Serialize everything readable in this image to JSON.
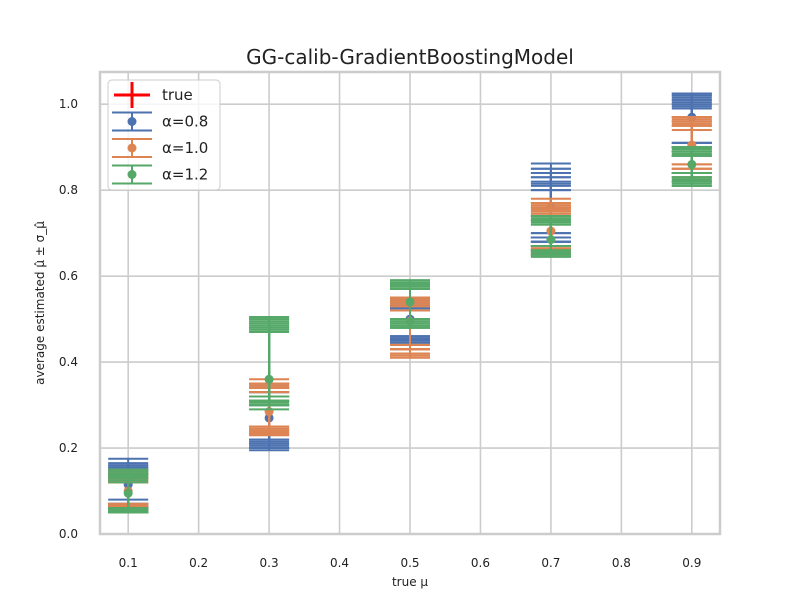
{
  "chart_data": {
    "type": "scatter",
    "title": "GG-calib-GradientBoostingModel",
    "xlabel": "true μ",
    "ylabel": "average estimated μ̂ ± σ_μ̂",
    "xlim": [
      0.06,
      0.94
    ],
    "ylim": [
      0.0,
      1.075
    ],
    "xticks": [
      0.1,
      0.2,
      0.3,
      0.4,
      0.5,
      0.6,
      0.7,
      0.8,
      0.9
    ],
    "yticks": [
      0.0,
      0.2,
      0.4,
      0.6,
      0.8,
      1.0
    ],
    "xtick_labels": [
      "0.1",
      "0.2",
      "0.3",
      "0.4",
      "0.5",
      "0.6",
      "0.7",
      "0.8",
      "0.9"
    ],
    "ytick_labels": [
      "0.0",
      "0.2",
      "0.4",
      "0.6",
      "0.8",
      "1.0"
    ],
    "grid": true,
    "legend_position": "top-left",
    "x": [
      0.1,
      0.3,
      0.5,
      0.7,
      0.9
    ],
    "series": [
      {
        "name": "true",
        "kind": "true",
        "color": "#ff0000",
        "y": [
          0.1,
          0.3,
          0.5,
          0.7,
          0.9
        ]
      },
      {
        "name": "α=0.8",
        "kind": "errorbar",
        "color": "#4c72b0",
        "means": [
          0.115,
          0.27,
          0.5,
          0.76,
          0.97
        ],
        "runs": [
          [
            [
              0.05,
              0.155
            ],
            [
              0.06,
              0.175
            ],
            [
              0.07,
              0.16
            ],
            [
              0.06,
              0.15
            ],
            [
              0.07,
              0.14
            ],
            [
              0.08,
              0.15
            ],
            [
              0.05,
              0.165
            ],
            [
              0.065,
              0.15
            ],
            [
              0.06,
              0.145
            ],
            [
              0.07,
              0.155
            ],
            [
              0.06,
              0.16
            ],
            [
              0.065,
              0.14
            ]
          ],
          [
            [
              0.195,
              0.35
            ],
            [
              0.2,
              0.33
            ],
            [
              0.21,
              0.34
            ],
            [
              0.2,
              0.31
            ],
            [
              0.22,
              0.33
            ],
            [
              0.2,
              0.35
            ],
            [
              0.205,
              0.32
            ],
            [
              0.21,
              0.3
            ],
            [
              0.2,
              0.33
            ],
            [
              0.215,
              0.34
            ],
            [
              0.2,
              0.3
            ],
            [
              0.22,
              0.32
            ]
          ],
          [
            [
              0.44,
              0.545
            ],
            [
              0.45,
              0.53
            ],
            [
              0.46,
              0.55
            ],
            [
              0.45,
              0.52
            ],
            [
              0.46,
              0.54
            ],
            [
              0.44,
              0.53
            ],
            [
              0.45,
              0.55
            ],
            [
              0.46,
              0.52
            ],
            [
              0.45,
              0.54
            ],
            [
              0.44,
              0.52
            ],
            [
              0.455,
              0.535
            ],
            [
              0.445,
              0.525
            ]
          ],
          [
            [
              0.67,
              0.85
            ],
            [
              0.68,
              0.862
            ],
            [
              0.69,
              0.84
            ],
            [
              0.68,
              0.815
            ],
            [
              0.7,
              0.83
            ],
            [
              0.69,
              0.85
            ],
            [
              0.67,
              0.8
            ],
            [
              0.68,
              0.84
            ],
            [
              0.69,
              0.81
            ],
            [
              0.7,
              0.82
            ],
            [
              0.68,
              0.83
            ],
            [
              0.69,
              0.8
            ]
          ],
          [
            [
              0.89,
              1.025
            ],
            [
              0.9,
              1.015
            ],
            [
              0.91,
              1.02
            ],
            [
              0.89,
              1.0
            ],
            [
              0.9,
              1.01
            ],
            [
              0.91,
              1.025
            ],
            [
              0.88,
              0.99
            ],
            [
              0.9,
              1.02
            ],
            [
              0.89,
              1.0
            ],
            [
              0.91,
              1.01
            ],
            [
              0.9,
              0.995
            ],
            [
              0.89,
              1.005
            ]
          ]
        ]
      },
      {
        "name": "α=1.0",
        "kind": "errorbar",
        "color": "#dd8452",
        "means": [
          0.1,
          0.285,
          0.495,
          0.705,
          0.905
        ],
        "runs": [
          [
            [
              0.055,
              0.14
            ],
            [
              0.06,
              0.13
            ],
            [
              0.065,
              0.145
            ],
            [
              0.06,
              0.12
            ],
            [
              0.07,
              0.135
            ],
            [
              0.055,
              0.125
            ],
            [
              0.06,
              0.14
            ],
            [
              0.065,
              0.13
            ],
            [
              0.06,
              0.12
            ],
            [
              0.07,
              0.14
            ],
            [
              0.06,
              0.135
            ],
            [
              0.065,
              0.125
            ]
          ],
          [
            [
              0.23,
              0.35
            ],
            [
              0.24,
              0.34
            ],
            [
              0.235,
              0.33
            ],
            [
              0.25,
              0.35
            ],
            [
              0.23,
              0.32
            ],
            [
              0.245,
              0.34
            ],
            [
              0.24,
              0.31
            ],
            [
              0.235,
              0.345
            ],
            [
              0.25,
              0.33
            ],
            [
              0.24,
              0.36
            ],
            [
              0.23,
              0.34
            ],
            [
              0.245,
              0.35
            ]
          ],
          [
            [
              0.41,
              0.55
            ],
            [
              0.42,
              0.54
            ],
            [
              0.43,
              0.545
            ],
            [
              0.42,
              0.53
            ],
            [
              0.44,
              0.54
            ],
            [
              0.43,
              0.55
            ],
            [
              0.415,
              0.52
            ],
            [
              0.42,
              0.54
            ],
            [
              0.43,
              0.53
            ],
            [
              0.44,
              0.545
            ],
            [
              0.42,
              0.55
            ],
            [
              0.43,
              0.535
            ]
          ],
          [
            [
              0.65,
              0.77
            ],
            [
              0.66,
              0.76
            ],
            [
              0.665,
              0.75
            ],
            [
              0.65,
              0.78
            ],
            [
              0.67,
              0.76
            ],
            [
              0.66,
              0.77
            ],
            [
              0.65,
              0.75
            ],
            [
              0.665,
              0.765
            ],
            [
              0.66,
              0.755
            ],
            [
              0.67,
              0.77
            ],
            [
              0.655,
              0.76
            ],
            [
              0.66,
              0.745
            ]
          ],
          [
            [
              0.83,
              0.97
            ],
            [
              0.84,
              0.96
            ],
            [
              0.85,
              0.95
            ],
            [
              0.84,
              0.97
            ],
            [
              0.86,
              0.96
            ],
            [
              0.84,
              0.95
            ],
            [
              0.83,
              0.96
            ],
            [
              0.85,
              0.97
            ],
            [
              0.84,
              0.94
            ],
            [
              0.86,
              0.95
            ],
            [
              0.84,
              0.965
            ],
            [
              0.85,
              0.955
            ]
          ]
        ]
      },
      {
        "name": "α=1.2",
        "kind": "errorbar",
        "color": "#55a868",
        "means": [
          0.095,
          0.36,
          0.54,
          0.685,
          0.86
        ],
        "runs": [
          [
            [
              0.05,
              0.15
            ],
            [
              0.055,
              0.14
            ],
            [
              0.06,
              0.145
            ],
            [
              0.05,
              0.13
            ],
            [
              0.06,
              0.14
            ],
            [
              0.055,
              0.15
            ],
            [
              0.06,
              0.13
            ],
            [
              0.05,
              0.14
            ],
            [
              0.055,
              0.12
            ],
            [
              0.06,
              0.14
            ],
            [
              0.055,
              0.135
            ],
            [
              0.05,
              0.125
            ]
          ],
          [
            [
              0.29,
              0.505
            ],
            [
              0.3,
              0.49
            ],
            [
              0.31,
              0.48
            ],
            [
              0.3,
              0.5
            ],
            [
              0.32,
              0.49
            ],
            [
              0.31,
              0.475
            ],
            [
              0.3,
              0.485
            ],
            [
              0.31,
              0.5
            ],
            [
              0.32,
              0.48
            ],
            [
              0.3,
              0.47
            ],
            [
              0.31,
              0.49
            ],
            [
              0.305,
              0.495
            ]
          ],
          [
            [
              0.48,
              0.59
            ],
            [
              0.49,
              0.58
            ],
            [
              0.5,
              0.59
            ],
            [
              0.49,
              0.57
            ],
            [
              0.5,
              0.58
            ],
            [
              0.48,
              0.59
            ],
            [
              0.49,
              0.58
            ],
            [
              0.5,
              0.57
            ],
            [
              0.49,
              0.59
            ],
            [
              0.48,
              0.58
            ],
            [
              0.495,
              0.585
            ],
            [
              0.485,
              0.575
            ]
          ],
          [
            [
              0.645,
              0.74
            ],
            [
              0.65,
              0.73
            ],
            [
              0.66,
              0.74
            ],
            [
              0.65,
              0.72
            ],
            [
              0.67,
              0.73
            ],
            [
              0.66,
              0.74
            ],
            [
              0.65,
              0.735
            ],
            [
              0.66,
              0.725
            ],
            [
              0.645,
              0.73
            ],
            [
              0.67,
              0.74
            ],
            [
              0.655,
              0.72
            ],
            [
              0.66,
              0.73
            ]
          ],
          [
            [
              0.81,
              0.9
            ],
            [
              0.82,
              0.89
            ],
            [
              0.83,
              0.9
            ],
            [
              0.82,
              0.88
            ],
            [
              0.84,
              0.9
            ],
            [
              0.82,
              0.89
            ],
            [
              0.81,
              0.88
            ],
            [
              0.83,
              0.89
            ],
            [
              0.82,
              0.9
            ],
            [
              0.84,
              0.88
            ],
            [
              0.825,
              0.895
            ],
            [
              0.815,
              0.885
            ]
          ]
        ]
      }
    ]
  }
}
